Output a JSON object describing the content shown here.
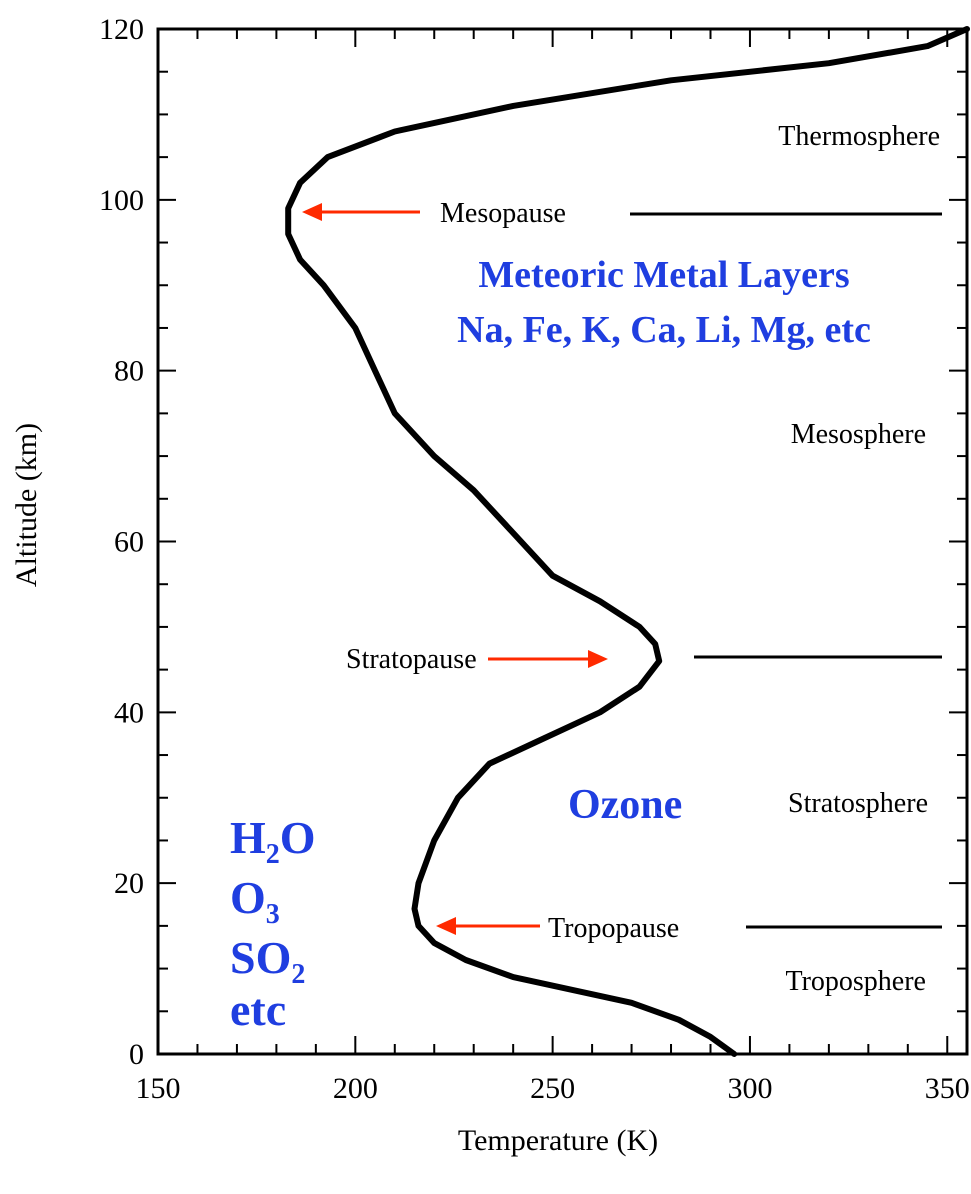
{
  "chart_data": {
    "type": "line",
    "xlabel": "Temperature (K)",
    "ylabel": "Altitude (km)",
    "xlim": [
      150,
      355
    ],
    "ylim": [
      0,
      120
    ],
    "x_ticks": [
      150,
      200,
      250,
      300,
      350
    ],
    "y_ticks": [
      0,
      20,
      40,
      60,
      80,
      100,
      120
    ],
    "x_minor_step": 10,
    "y_minor_step": 5,
    "grid": false,
    "colors": {
      "curve": "#000000",
      "arrow": "#ff2a00",
      "blue_text": "#1f3ee0"
    },
    "series": [
      {
        "points": [
          [
            296,
            0
          ],
          [
            290,
            2
          ],
          [
            282,
            4
          ],
          [
            270,
            6
          ],
          [
            255,
            7.5
          ],
          [
            240,
            9
          ],
          [
            228,
            11
          ],
          [
            220,
            13
          ],
          [
            216,
            15
          ],
          [
            215,
            17
          ],
          [
            216,
            20
          ],
          [
            220,
            25
          ],
          [
            226,
            30
          ],
          [
            234,
            34
          ],
          [
            248,
            37
          ],
          [
            262,
            40
          ],
          [
            272,
            43
          ],
          [
            277,
            46
          ],
          [
            276,
            48
          ],
          [
            272,
            50
          ],
          [
            262,
            53
          ],
          [
            250,
            56
          ],
          [
            240,
            61
          ],
          [
            230,
            66
          ],
          [
            220,
            70
          ],
          [
            210,
            75
          ],
          [
            205,
            80
          ],
          [
            200,
            85
          ],
          [
            192,
            90
          ],
          [
            186,
            93
          ],
          [
            183,
            96
          ],
          [
            183,
            99
          ],
          [
            186,
            102
          ],
          [
            193,
            105
          ],
          [
            210,
            108
          ],
          [
            240,
            111
          ],
          [
            280,
            114
          ],
          [
            320,
            116
          ],
          [
            345,
            118
          ],
          [
            355,
            120
          ]
        ]
      }
    ],
    "annotations": {
      "thermosphere": "Thermosphere",
      "mesopause": "Mesopause",
      "metals_line1": "Meteoric Metal Layers",
      "metals_line2": "Na, Fe, K, Ca, Li, Mg, etc",
      "mesosphere": "Mesosphere",
      "stratopause": "Stratopause",
      "ozone": "Ozone",
      "stratosphere": "Stratosphere",
      "tropopause": "Tropopause",
      "troposphere": "Troposphere",
      "species": {
        "h2o_main": "H",
        "h2o_sub": "2",
        "h2o_tail": "O",
        "o3_main": "O",
        "o3_sub": "3",
        "so2_main": "SO",
        "so2_sub": "2",
        "etc": "etc"
      }
    },
    "layer_boundaries_km": {
      "mesopause": 98.5,
      "stratopause": 46.5,
      "tropopause": 15
    }
  }
}
